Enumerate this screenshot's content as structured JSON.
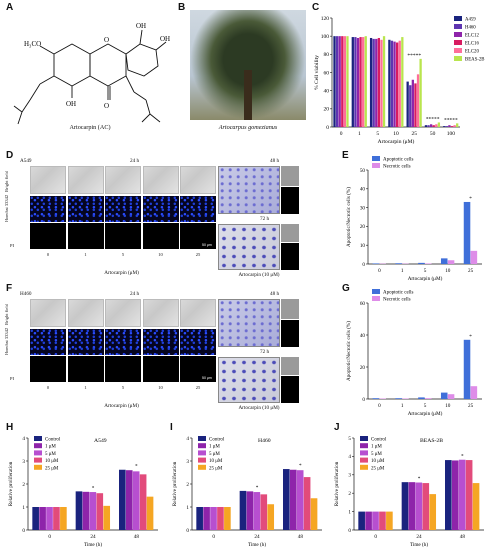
{
  "panels": [
    "A",
    "B",
    "C",
    "D",
    "E",
    "F",
    "G",
    "H",
    "I",
    "J"
  ],
  "panel_a": {
    "name": "Artocarpin (AC)",
    "methoxy": "H₃CO",
    "oh": "OH",
    "oh2": "OH",
    "oh3": "OH",
    "o": "O",
    "o2": "O"
  },
  "panel_b": {
    "caption": "Artocarpus gomezianus"
  },
  "panel_c": {
    "ylabel": "% Cell viability",
    "xlabel": "Artocarpin (μM)",
    "legend": [
      "A459",
      "H460",
      "ELC12",
      "ELC16",
      "ELC20",
      "BEAS-2B"
    ],
    "colors": [
      "#1a237e",
      "#5e35b1",
      "#8e24aa",
      "#d81b60",
      "#ff6e9a",
      "#b9e54e"
    ]
  },
  "panel_d": {
    "cell_line": "A549",
    "time_left": "24 h",
    "time_right_top": "48 h",
    "time_right_bottom": "72 h",
    "rows": [
      "Bright field",
      "Hoechst 33342",
      "PI"
    ],
    "doses": [
      "0",
      "1",
      "5",
      "10",
      "25"
    ],
    "xlabel": "Artocarpin (μM)",
    "xlabel_right": "Artocarpin (10 μM)",
    "scale": "50 μm"
  },
  "panel_f": {
    "cell_line": "H460",
    "time_left": "24 h",
    "time_right_top": "48 h",
    "time_right_bottom": "72 h",
    "rows": [
      "Bright field",
      "Hoechst 33342",
      "PI"
    ],
    "doses": [
      "0",
      "1",
      "5",
      "10",
      "25"
    ],
    "xlabel": "Artocarpin (μM)",
    "xlabel_right": "Artocarpin (10 μM)",
    "scale": "50 μm"
  },
  "chart_data": [
    {
      "panel": "C",
      "type": "bar",
      "categories": [
        "0",
        "1",
        "5",
        "10",
        "25",
        "50",
        "100"
      ],
      "ylabel": "% Cell viability",
      "xlabel": "Artocarpin (μM)",
      "ylim": [
        0,
        120
      ],
      "yticks": [
        "0",
        "20",
        "40",
        "60",
        "80",
        "100",
        "120"
      ],
      "series": [
        {
          "name": "A459",
          "values": [
            100,
            99,
            98,
            96,
            50,
            2,
            1
          ]
        },
        {
          "name": "H460",
          "values": [
            100,
            99,
            97,
            95,
            46,
            2,
            1
          ]
        },
        {
          "name": "ELC12",
          "values": [
            100,
            98,
            97,
            94,
            52,
            3,
            2
          ]
        },
        {
          "name": "ELC16",
          "values": [
            100,
            99,
            98,
            93,
            48,
            2,
            1
          ]
        },
        {
          "name": "ELC20",
          "values": [
            100,
            99,
            96,
            95,
            58,
            3,
            2
          ]
        },
        {
          "name": "BEAS-2B",
          "values": [
            100,
            100,
            100,
            99,
            75,
            5,
            4
          ]
        }
      ],
      "markers": [
        "",
        "",
        "",
        "",
        "*****",
        "*****",
        "*****"
      ]
    },
    {
      "panel": "E",
      "type": "bar",
      "categories": [
        "0",
        "1",
        "5",
        "10",
        "25"
      ],
      "ylabel": "Apoptotic/Necrotic cells (%)",
      "xlabel": "Artocarpin (μM)",
      "ylim": [
        0,
        50
      ],
      "yticks": [
        "0",
        "10",
        "20",
        "30",
        "40",
        "50"
      ],
      "series": [
        {
          "name": "Apoptotic cells",
          "values": [
            0.3,
            0.4,
            0.6,
            3,
            33
          ]
        },
        {
          "name": "Necrotic cells",
          "values": [
            0.2,
            0.2,
            0.3,
            2,
            7
          ]
        }
      ],
      "colors": [
        "#3f6fd9",
        "#de8ce8"
      ],
      "markers": [
        "",
        "",
        "",
        "",
        "*"
      ]
    },
    {
      "panel": "G",
      "type": "bar",
      "categories": [
        "0",
        "1",
        "5",
        "10",
        "25"
      ],
      "ylabel": "Apoptotic/Necrotic cells (%)",
      "xlabel": "Artocarpin (μM)",
      "ylim": [
        0,
        60
      ],
      "yticks": [
        "0",
        "20",
        "40",
        "60"
      ],
      "series": [
        {
          "name": "Apoptotic cells",
          "values": [
            0.5,
            0.5,
            1,
            4,
            37
          ]
        },
        {
          "name": "Necrotic cells",
          "values": [
            0.3,
            0.3,
            0.5,
            3,
            8
          ]
        }
      ],
      "colors": [
        "#3f6fd9",
        "#de8ce8"
      ],
      "markers": [
        "",
        "",
        "",
        "",
        "*"
      ]
    },
    {
      "panel": "H",
      "title": "A549",
      "type": "bar",
      "categories": [
        "0",
        "24",
        "48"
      ],
      "ylabel": "Relative proliferation",
      "xlabel": "Time (h)",
      "ylim": [
        0,
        4
      ],
      "yticks": [
        "0",
        "1",
        "2",
        "3",
        "4"
      ],
      "series": [
        {
          "name": "Control",
          "values": [
            1,
            1.68,
            2.62
          ]
        },
        {
          "name": "1 μM",
          "values": [
            1,
            1.66,
            2.6
          ]
        },
        {
          "name": "5 μM",
          "values": [
            1,
            1.65,
            2.55
          ]
        },
        {
          "name": "10 μM",
          "values": [
            1,
            1.6,
            2.42
          ]
        },
        {
          "name": "25 μM",
          "values": [
            1,
            1.05,
            1.45
          ]
        }
      ],
      "colors": [
        "#1a237e",
        "#8e24aa",
        "#b74fd0",
        "#e24b7b",
        "#f5a623"
      ],
      "markers": [
        "",
        "*",
        "*"
      ]
    },
    {
      "panel": "I",
      "title": "H460",
      "type": "bar",
      "categories": [
        "0",
        "24",
        "48"
      ],
      "ylabel": "Relative proliferation",
      "xlabel": "Time (h)",
      "ylim": [
        0,
        4
      ],
      "yticks": [
        "0",
        "1",
        "2",
        "3",
        "4"
      ],
      "series": [
        {
          "name": "Control",
          "values": [
            1,
            1.7,
            2.65
          ]
        },
        {
          "name": "1 μM",
          "values": [
            1,
            1.68,
            2.62
          ]
        },
        {
          "name": "5 μM",
          "values": [
            1,
            1.65,
            2.6
          ]
        },
        {
          "name": "10 μM",
          "values": [
            1,
            1.55,
            2.3
          ]
        },
        {
          "name": "25 μM",
          "values": [
            1,
            1.12,
            1.38
          ]
        }
      ],
      "colors": [
        "#1a237e",
        "#8e24aa",
        "#b74fd0",
        "#e24b7b",
        "#f5a623"
      ],
      "markers": [
        "",
        "*",
        "*"
      ]
    },
    {
      "panel": "J",
      "title": "BEAS-2B",
      "type": "bar",
      "categories": [
        "0",
        "24",
        "48"
      ],
      "ylabel": "Relative proliferation",
      "xlabel": "Time (h)",
      "ylim": [
        0,
        5
      ],
      "yticks": [
        "0",
        "1",
        "2",
        "3",
        "4",
        "5"
      ],
      "series": [
        {
          "name": "Control",
          "values": [
            1,
            2.6,
            3.8
          ]
        },
        {
          "name": "1 μM",
          "values": [
            1,
            2.6,
            3.78
          ]
        },
        {
          "name": "5 μM",
          "values": [
            1,
            2.58,
            3.82
          ]
        },
        {
          "name": "10 μM",
          "values": [
            1,
            2.55,
            3.8
          ]
        },
        {
          "name": "25 μM",
          "values": [
            1,
            1.95,
            2.55
          ]
        }
      ],
      "colors": [
        "#1a237e",
        "#8e24aa",
        "#b74fd0",
        "#e24b7b",
        "#f5a623"
      ],
      "markers": [
        "",
        "*",
        "*"
      ]
    }
  ]
}
